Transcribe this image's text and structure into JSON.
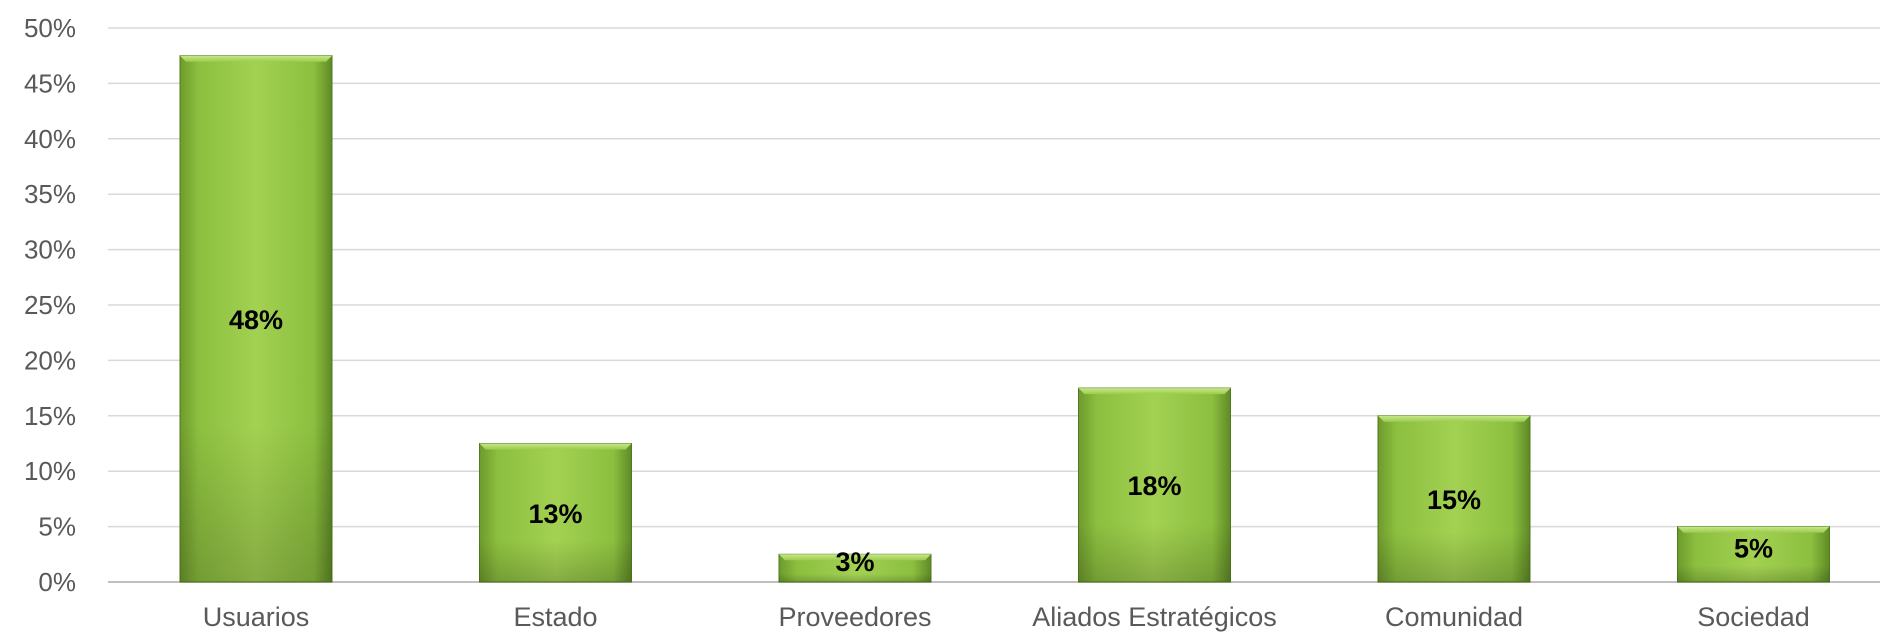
{
  "chart_data": {
    "type": "bar",
    "categories": [
      "Usuarios",
      "Estado",
      "Proveedores",
      "Aliados Estratégicos",
      "Comunidad",
      "Sociedad"
    ],
    "values": [
      0.475,
      0.125,
      0.025,
      0.175,
      0.15,
      0.05
    ],
    "data_labels": [
      "48%",
      "13%",
      "3%",
      "18%",
      "15%",
      "5%"
    ],
    "y_ticks": [
      "0%",
      "5%",
      "10%",
      "15%",
      "20%",
      "25%",
      "30%",
      "35%",
      "40%",
      "45%",
      "50%"
    ],
    "ylim": [
      0,
      0.5
    ],
    "y_step": 0.05,
    "grid": true,
    "legend": "none",
    "title": "",
    "xlabel": "",
    "ylabel": "",
    "colors": {
      "bar_light": "#a9d65a",
      "bar_mid": "#8cbf3f",
      "bar_dark": "#5f8a26",
      "bar_edge": "#4f7a1e",
      "grid": "#d9d9d9",
      "axis": "#bfbfbf",
      "tick_text": "#595959",
      "label_text": "#000000"
    }
  }
}
